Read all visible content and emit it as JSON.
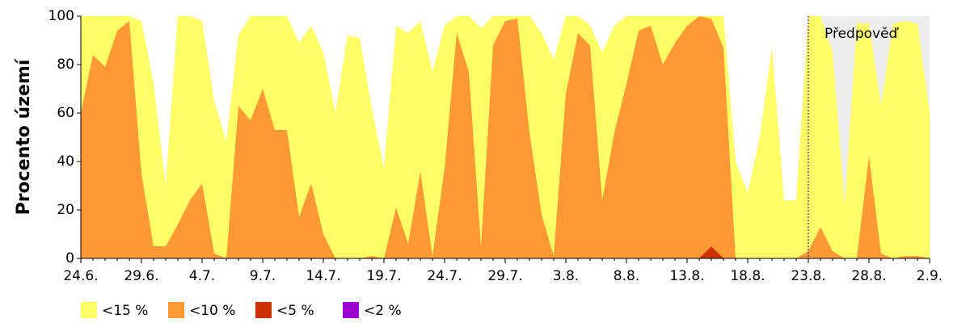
{
  "chart_data": {
    "type": "area",
    "y_label": "Procento území",
    "x": [
      "24.6.",
      null,
      null,
      null,
      null,
      "29.6.",
      null,
      null,
      null,
      null,
      "4.7.",
      null,
      null,
      null,
      null,
      "9.7.",
      null,
      null,
      null,
      null,
      "14.7.",
      null,
      null,
      null,
      null,
      "19.7.",
      null,
      null,
      null,
      null,
      "24.7.",
      null,
      null,
      null,
      null,
      "29.7.",
      null,
      null,
      null,
      null,
      "3.8.",
      null,
      null,
      null,
      null,
      "8.8.",
      null,
      null,
      null,
      null,
      "13.8.",
      null,
      null,
      null,
      null,
      "18.8.",
      null,
      null,
      null,
      null,
      "23.8.",
      null,
      null,
      null,
      null,
      "28.8.",
      null,
      null,
      null,
      null,
      "2.9."
    ],
    "series": [
      {
        "name": "<15 %",
        "color": "#ffff66",
        "values": [
          100,
          100,
          100,
          100,
          100,
          98,
          72,
          30,
          100,
          100,
          98,
          65,
          48,
          92,
          100,
          100,
          100,
          100,
          89,
          96,
          85,
          60,
          92,
          91,
          62,
          37,
          96,
          93,
          98,
          77,
          96,
          100,
          100,
          95,
          100,
          100,
          100,
          100,
          93,
          82,
          100,
          100,
          96,
          85,
          96,
          100,
          100,
          100,
          100,
          100,
          100,
          100,
          100,
          100,
          40,
          27,
          50,
          87,
          24,
          24,
          100,
          100,
          85,
          22,
          97,
          97,
          63,
          97,
          98,
          97,
          60
        ]
      },
      {
        "name": "<10 %",
        "color": "#ff9933",
        "values": [
          60,
          84,
          79,
          94,
          98,
          35,
          5,
          5,
          14,
          24,
          31,
          2,
          0,
          63,
          57,
          70,
          53,
          53,
          17,
          31,
          10,
          0,
          0,
          0,
          1,
          0,
          21,
          6,
          36,
          1,
          37,
          93,
          77,
          5,
          88,
          98,
          99,
          52,
          18,
          1,
          68,
          93,
          88,
          24,
          52,
          72,
          94,
          96,
          80,
          89,
          96,
          100,
          99,
          87,
          0,
          0,
          0,
          0,
          0,
          0,
          3,
          13,
          3,
          0,
          0,
          42,
          2,
          0,
          1,
          1,
          0
        ]
      },
      {
        "name": "<5 %",
        "color": "#cc3300",
        "values": [
          0,
          0,
          0,
          0,
          0,
          0,
          0,
          0,
          0,
          0,
          0,
          0,
          0,
          0,
          0,
          0,
          0,
          0,
          0,
          0,
          0,
          0,
          0,
          0,
          0,
          0,
          0,
          0,
          0,
          0,
          0,
          0,
          0,
          0,
          0,
          0,
          0,
          0,
          0,
          0,
          0,
          0,
          0,
          0,
          0,
          0,
          0,
          0,
          0,
          0,
          0,
          0,
          5,
          0,
          0,
          0,
          0,
          0,
          0,
          0,
          0,
          0,
          0,
          0,
          0,
          0,
          0,
          0,
          0,
          0,
          0
        ]
      },
      {
        "name": "<2 %",
        "color": "#9900cc",
        "values": [
          0,
          0,
          0,
          0,
          0,
          0,
          0,
          0,
          0,
          0,
          0,
          0,
          0,
          0,
          0,
          0,
          0,
          0,
          0,
          0,
          0,
          0,
          0,
          0,
          0,
          0,
          0,
          0,
          0,
          0,
          0,
          0,
          0,
          0,
          0,
          0,
          0,
          0,
          0,
          0,
          0,
          0,
          0,
          0,
          0,
          0,
          0,
          0,
          0,
          0,
          0,
          0,
          0,
          0,
          0,
          0,
          0,
          0,
          0,
          0,
          0,
          0,
          0,
          0,
          0,
          0,
          0,
          0,
          0,
          0,
          0
        ]
      }
    ],
    "ylim": [
      0,
      100
    ],
    "yticks": [
      0,
      20,
      40,
      60,
      80,
      100
    ],
    "forecast": {
      "label": "Předpověď",
      "start": "23.8.",
      "color": "#eeeeee"
    }
  }
}
